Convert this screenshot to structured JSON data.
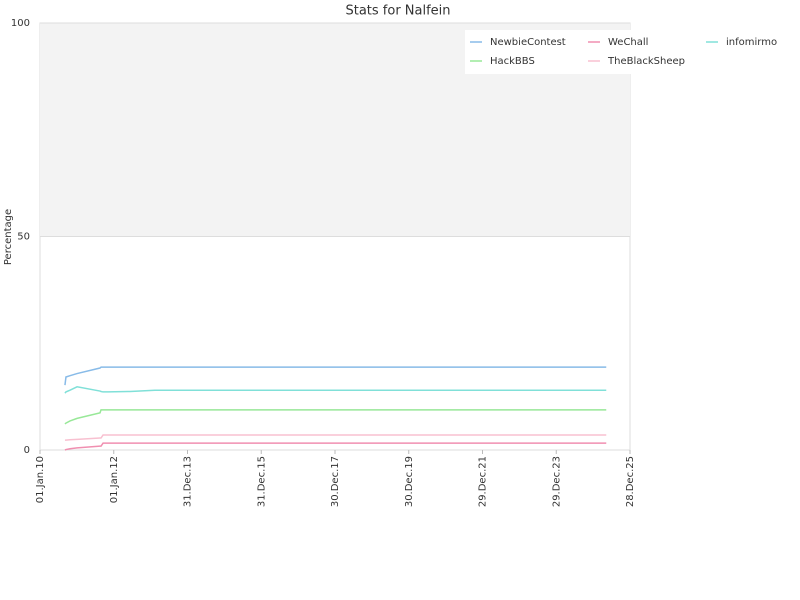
{
  "chart_data": {
    "type": "line",
    "title": "Stats for Nalfein",
    "ylabel": "Percentage",
    "x": [
      "2010-09-05",
      "2010-09-15",
      "2010-10-25",
      "2011-01-03",
      "2011-08-18",
      "2011-08-28",
      "2011-09-17",
      "2011-11-06",
      "2012-06-10",
      "2013-02-12",
      "2025-05-07"
    ],
    "series": [
      {
        "name": "NewbieContest",
        "color": "#88bbe8",
        "values": [
          15.2,
          17.1,
          17.4,
          17.9,
          19.2,
          19.4,
          19.4,
          19.4,
          19.4,
          19.4,
          19.4
        ]
      },
      {
        "name": "WeChall",
        "color": "#f08fb0",
        "values": [
          0,
          0.1,
          0.3,
          0.5,
          0.9,
          0.9,
          1.6,
          1.6,
          1.6,
          1.6,
          1.6
        ]
      },
      {
        "name": "infomirmo",
        "color": "#80e0d8",
        "values": [
          13.3,
          13.6,
          14.0,
          14.8,
          13.8,
          13.7,
          13.6,
          13.6,
          13.7,
          14.0,
          14.0
        ]
      },
      {
        "name": "HackBBS",
        "color": "#98e898",
        "values": [
          6.1,
          6.3,
          6.8,
          7.4,
          8.7,
          9.4,
          9.4,
          9.4,
          9.4,
          9.4,
          9.4
        ]
      },
      {
        "name": "TheBlackSheep",
        "color": "#f8c0d0",
        "values": [
          2.3,
          2.3,
          2.4,
          2.5,
          2.8,
          2.8,
          3.5,
          3.5,
          3.5,
          3.5,
          3.5
        ]
      }
    ],
    "xlim": [
      "2010-01-01",
      "2025-12-28"
    ],
    "xticks": [
      {
        "value": "2010-01-01",
        "label": "01.Jan.10"
      },
      {
        "value": "2012-01-01",
        "label": "01.Jan.12"
      },
      {
        "value": "2013-12-31",
        "label": "31.Dec.13"
      },
      {
        "value": "2015-12-31",
        "label": "31.Dec.15"
      },
      {
        "value": "2017-12-30",
        "label": "30.Dec.17"
      },
      {
        "value": "2019-12-30",
        "label": "30.Dec.19"
      },
      {
        "value": "2021-12-29",
        "label": "29.Dec.21"
      },
      {
        "value": "2023-12-29",
        "label": "29.Dec.23"
      },
      {
        "value": "2025-12-28",
        "label": "28.Dec.25"
      }
    ],
    "ylim": [
      0,
      100
    ],
    "yticks": [
      0,
      50,
      100
    ],
    "grid": true,
    "alternate_bands": true,
    "legend": "top-right"
  }
}
